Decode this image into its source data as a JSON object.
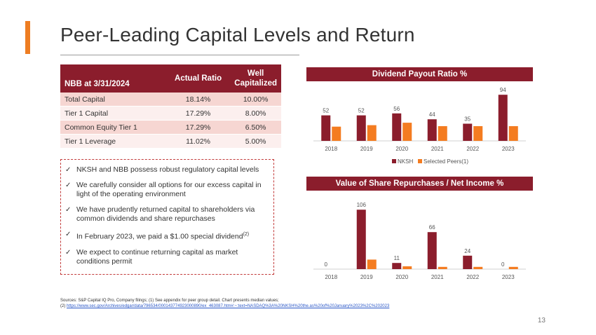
{
  "slide": {
    "title": "Peer-Leading Capital Levels and Return",
    "page_number": "13"
  },
  "table": {
    "headers": [
      "NBB at 3/31/2024",
      "Actual Ratio",
      "Well Capitalized"
    ],
    "rows": [
      [
        "Total Capital",
        "18.14%",
        "10.00%"
      ],
      [
        "Tier 1 Capital",
        "17.29%",
        "8.00%"
      ],
      [
        "Common Equity Tier 1",
        "17.29%",
        "6.50%"
      ],
      [
        "Tier 1 Leverage",
        "11.02%",
        "5.00%"
      ]
    ]
  },
  "bullets": [
    "NKSH and NBB possess robust regulatory capital levels",
    "We carefully consider all options for our excess capital in light of the operating environment",
    "We have prudently returned capital to shareholders via common dividends and share repurchases",
    "In February 2023, we paid a $1.00 special dividend",
    "We expect to continue returning capital as market conditions permit"
  ],
  "bullet_footnote_marker": "(2)",
  "check_glyph": "✓",
  "sources": {
    "line1": "Sources: S&P Capital IQ Pro, Company filings; (1) See appendix for peer group detail. Chart presents median values;",
    "prefix2": "(2) ",
    "link": "https://www.sec.gov/Archives/edgar/data/796534/000143774923000890/ex_463087.htm#:~:text=NASDAQ%3A%20NKSH%20the.as%20of%20January%2023%2C%202023"
  },
  "colors": {
    "nksh": "#8b1d2c",
    "peers": "#f47c20",
    "accent": "#ee7d22"
  },
  "chart_data": [
    {
      "type": "bar",
      "title": "Dividend Payout Ratio %",
      "categories": [
        "2018",
        "2019",
        "2020",
        "2021",
        "2022",
        "2023"
      ],
      "series": [
        {
          "name": "NKSH",
          "values": [
            52,
            52,
            56,
            44,
            35,
            94
          ],
          "labels": [
            "52",
            "52",
            "56",
            "44",
            "35",
            "94"
          ]
        },
        {
          "name": "Selected Peers(1)",
          "values": [
            29,
            32,
            37,
            30,
            30,
            30
          ]
        }
      ],
      "ylim": [
        0,
        100
      ],
      "legend": "bottom"
    },
    {
      "type": "bar",
      "title": "Value of Share Repurchases / Net Income %",
      "categories": [
        "2018",
        "2019",
        "2020",
        "2021",
        "2022",
        "2023"
      ],
      "series": [
        {
          "name": "NKSH",
          "values": [
            0,
            106,
            11,
            66,
            24,
            0
          ],
          "labels": [
            "0",
            "106",
            "11",
            "66",
            "24",
            "0"
          ]
        },
        {
          "name": "Selected Peers(1)",
          "values": [
            0,
            17,
            5,
            4,
            4,
            4
          ]
        }
      ],
      "ylim": [
        0,
        110
      ],
      "legend": "none"
    }
  ]
}
